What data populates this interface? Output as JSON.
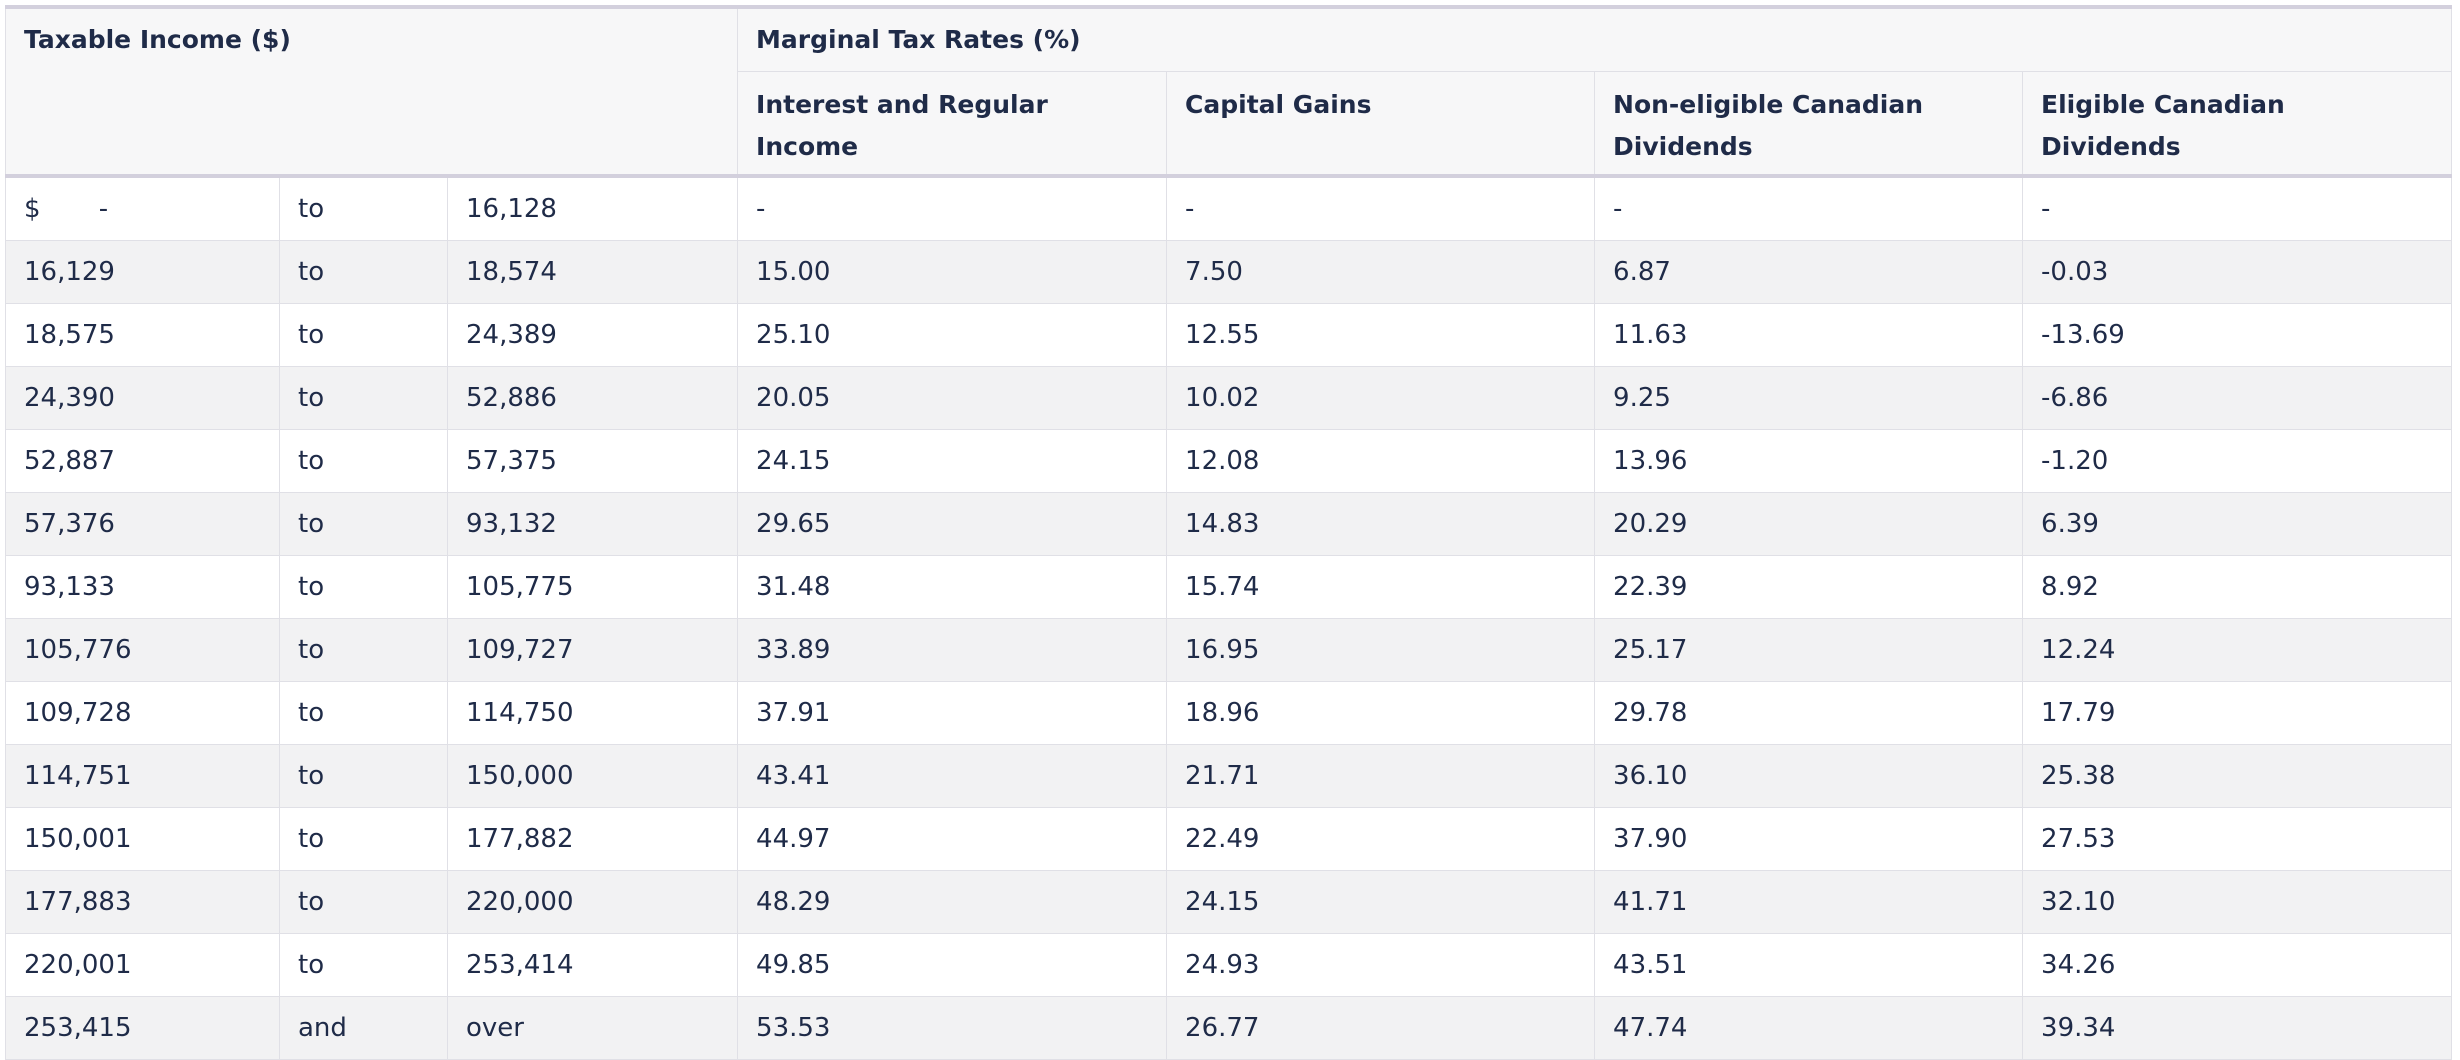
{
  "table": {
    "header": {
      "income": "Taxable Income ($)",
      "rates": "Marginal Tax Rates (%)",
      "columns": [
        "Interest and Regular Income",
        "Capital Gains",
        "Non-eligible Canadian Dividends",
        "Eligible Canadian Dividends"
      ]
    },
    "rows": [
      [
        "$ -",
        "to",
        "16,128",
        "-",
        "-",
        "-",
        "-"
      ],
      [
        "16,129",
        "to",
        "18,574",
        "15.00",
        "7.50",
        "6.87",
        "-0.03"
      ],
      [
        "18,575",
        "to",
        "24,389",
        "25.10",
        "12.55",
        "11.63",
        "-13.69"
      ],
      [
        "24,390",
        "to",
        "52,886",
        "20.05",
        "10.02",
        "9.25",
        "-6.86"
      ],
      [
        "52,887",
        "to",
        "57,375",
        "24.15",
        "12.08",
        "13.96",
        "-1.20"
      ],
      [
        "57,376",
        "to",
        "93,132",
        "29.65",
        "14.83",
        "20.29",
        "6.39"
      ],
      [
        "93,133",
        "to",
        "105,775",
        "31.48",
        "15.74",
        "22.39",
        "8.92"
      ],
      [
        "105,776",
        "to",
        "109,727",
        "33.89",
        "16.95",
        "25.17",
        "12.24"
      ],
      [
        "109,728",
        "to",
        "114,750",
        "37.91",
        "18.96",
        "29.78",
        "17.79"
      ],
      [
        "114,751",
        "to",
        "150,000",
        "43.41",
        "21.71",
        "36.10",
        "25.38"
      ],
      [
        "150,001",
        "to",
        "177,882",
        "44.97",
        "22.49",
        "37.90",
        "27.53"
      ],
      [
        "177,883",
        "to",
        "220,000",
        "48.29",
        "24.15",
        "41.71",
        "32.10"
      ],
      [
        "220,001",
        "to",
        "253,414",
        "49.85",
        "24.93",
        "43.51",
        "34.26"
      ],
      [
        "253,415",
        "and",
        "over",
        "53.53",
        "26.77",
        "47.74",
        "39.34"
      ]
    ]
  }
}
